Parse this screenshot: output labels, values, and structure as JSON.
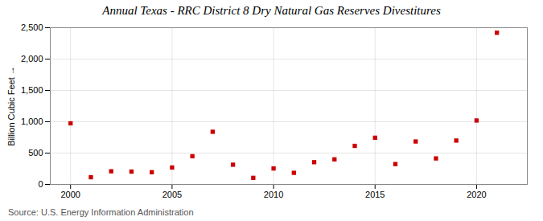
{
  "chart_data": {
    "type": "scatter",
    "title": "Annual Texas - RRC District 8 Dry Natural Gas Reserves Divestitures",
    "ylabel": "Billion Cubic Feet",
    "source": "Source: U.S. Energy Information Administration",
    "x": [
      2000,
      2001,
      2002,
      2003,
      2004,
      2005,
      2006,
      2007,
      2008,
      2009,
      2010,
      2011,
      2012,
      2013,
      2014,
      2015,
      2016,
      2017,
      2018,
      2019,
      2020,
      2021
    ],
    "values": [
      975,
      115,
      210,
      205,
      195,
      270,
      450,
      840,
      315,
      105,
      255,
      185,
      355,
      400,
      615,
      745,
      325,
      685,
      415,
      700,
      1020,
      2420
    ],
    "color": "#cc0000",
    "marker": "square",
    "xlim": [
      1999.0,
      2022.5
    ],
    "xticks": [
      2000,
      2005,
      2010,
      2015,
      2020
    ],
    "ylim": [
      0,
      2500
    ],
    "yticks": [
      0,
      500,
      {
        "value": 1000,
        "label": "1,000"
      },
      {
        "value": 1500,
        "label": "1,500"
      },
      {
        "value": 2000,
        "label": "2,000"
      },
      {
        "value": 2500,
        "label": "2,500"
      }
    ],
    "grid": true
  }
}
